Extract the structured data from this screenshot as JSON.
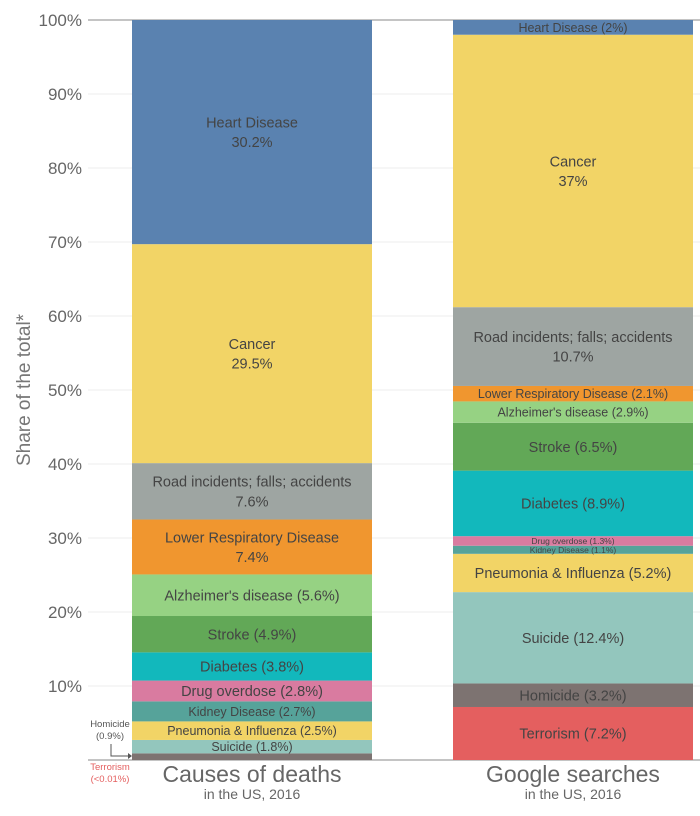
{
  "chart_data": {
    "type": "bar",
    "stacked": true,
    "ylabel": "Share of the total*",
    "ylim": [
      0,
      100
    ],
    "yticks": [
      "10%",
      "20%",
      "30%",
      "40%",
      "50%",
      "60%",
      "70%",
      "80%",
      "90%",
      "100%"
    ],
    "grid": true,
    "categories": [
      {
        "title": "Causes of deaths",
        "subtitle": "in the US, 2016"
      },
      {
        "title": "Google searches",
        "subtitle": "in the US, 2016"
      }
    ],
    "bars": [
      {
        "segments": [
          {
            "name": "Homicide",
            "value": 0.9,
            "color": "#7d7371",
            "label": []
          },
          {
            "name": "Suicide",
            "value": 1.8,
            "color": "#93c6bd",
            "label": [
              "Suicide (1.8%)"
            ],
            "size": "m"
          },
          {
            "name": "Pneumonia & Influenza",
            "value": 2.5,
            "color": "#f2d466",
            "label": [
              "Pneumonia & Influenza (2.5%)"
            ],
            "size": "m"
          },
          {
            "name": "Kidney Disease",
            "value": 2.7,
            "color": "#56a39a",
            "label": [
              "Kidney Disease (2.7%)"
            ],
            "size": "m"
          },
          {
            "name": "Drug overdose",
            "value": 2.8,
            "color": "#d97ba0",
            "label": [
              "Drug overdose (2.8%)"
            ],
            "size": "l"
          },
          {
            "name": "Diabetes",
            "value": 3.8,
            "color": "#12b8bc",
            "label": [
              "Diabetes (3.8%)"
            ],
            "size": "l"
          },
          {
            "name": "Stroke",
            "value": 4.9,
            "color": "#62a857",
            "label": [
              "Stroke (4.9%)"
            ],
            "size": "l"
          },
          {
            "name": "Alzheimer's disease",
            "value": 5.6,
            "color": "#96d283",
            "label": [
              "Alzheimer's disease (5.6%)"
            ],
            "size": "l"
          },
          {
            "name": "Lower Respiratory Disease",
            "value": 7.4,
            "color": "#f0962f",
            "label": [
              "Lower Respiratory Disease",
              "7.4%"
            ],
            "size": "l"
          },
          {
            "name": "Road incidents; falls; accidents",
            "value": 7.6,
            "color": "#9ea5a2",
            "label": [
              "Road incidents; falls; accidents",
              "7.6%"
            ],
            "size": "l"
          },
          {
            "name": "Cancer",
            "value": 29.5,
            "color": "#f2d466",
            "label": [
              "Cancer",
              "29.5%"
            ],
            "size": "l"
          },
          {
            "name": "Heart Disease",
            "value": 30.2,
            "color": "#5a82b0",
            "label": [
              "Heart Disease",
              "30.2%"
            ],
            "size": "l",
            "light": true
          }
        ]
      },
      {
        "segments": [
          {
            "name": "Terrorism",
            "value": 7.2,
            "color": "#e45f5f",
            "label": [
              "Terrorism (7.2%)"
            ],
            "size": "l",
            "light": true
          },
          {
            "name": "Homicide",
            "value": 3.2,
            "color": "#7d7371",
            "label": [
              "Homicide (3.2%)"
            ],
            "size": "l",
            "light": true
          },
          {
            "name": "Suicide",
            "value": 12.4,
            "color": "#93c6bd",
            "label": [
              "Suicide (12.4%)"
            ],
            "size": "l"
          },
          {
            "name": "Pneumonia & Influenza",
            "value": 5.2,
            "color": "#f2d466",
            "label": [
              "Pneumonia & Influenza (5.2%)"
            ],
            "size": "l"
          },
          {
            "name": "Kidney Disease",
            "value": 1.1,
            "color": "#56a39a",
            "label": [
              "Kidney Disease (1.1%)"
            ],
            "size": "xs"
          },
          {
            "name": "Drug overdose",
            "value": 1.3,
            "color": "#d97ba0",
            "label": [
              "Drug overdose (1.3%)"
            ],
            "size": "xs"
          },
          {
            "name": "Diabetes",
            "value": 8.9,
            "color": "#12b8bc",
            "label": [
              "Diabetes (8.9%)"
            ],
            "size": "l"
          },
          {
            "name": "Stroke",
            "value": 6.5,
            "color": "#62a857",
            "label": [
              "Stroke (6.5%)"
            ],
            "size": "l"
          },
          {
            "name": "Alzheimer's disease",
            "value": 2.9,
            "color": "#96d283",
            "label": [
              "Alzheimer's disease (2.9%)"
            ],
            "size": "m"
          },
          {
            "name": "Lower Respiratory Disease",
            "value": 2.1,
            "color": "#f0962f",
            "label": [
              "Lower Respiratory Disease (2.1%)"
            ],
            "size": "m"
          },
          {
            "name": "Road incidents; falls; accidents",
            "value": 10.7,
            "color": "#9ea5a2",
            "label": [
              "Road incidents; falls; accidents",
              "10.7%"
            ],
            "size": "l"
          },
          {
            "name": "Cancer",
            "value": 37,
            "color": "#f2d466",
            "label": [
              "Cancer",
              "37%"
            ],
            "size": "l"
          },
          {
            "name": "Heart Disease",
            "value": 2,
            "color": "#5a82b0",
            "label": [
              "Heart Disease (2%)"
            ],
            "size": "m",
            "light": true
          }
        ]
      }
    ],
    "annotations": {
      "homicide": [
        "Homicide",
        "(0.9%)"
      ],
      "terrorism": [
        "Terrorism",
        "(<0.01%)"
      ],
      "terrorism_color": "#e45f5f"
    }
  }
}
